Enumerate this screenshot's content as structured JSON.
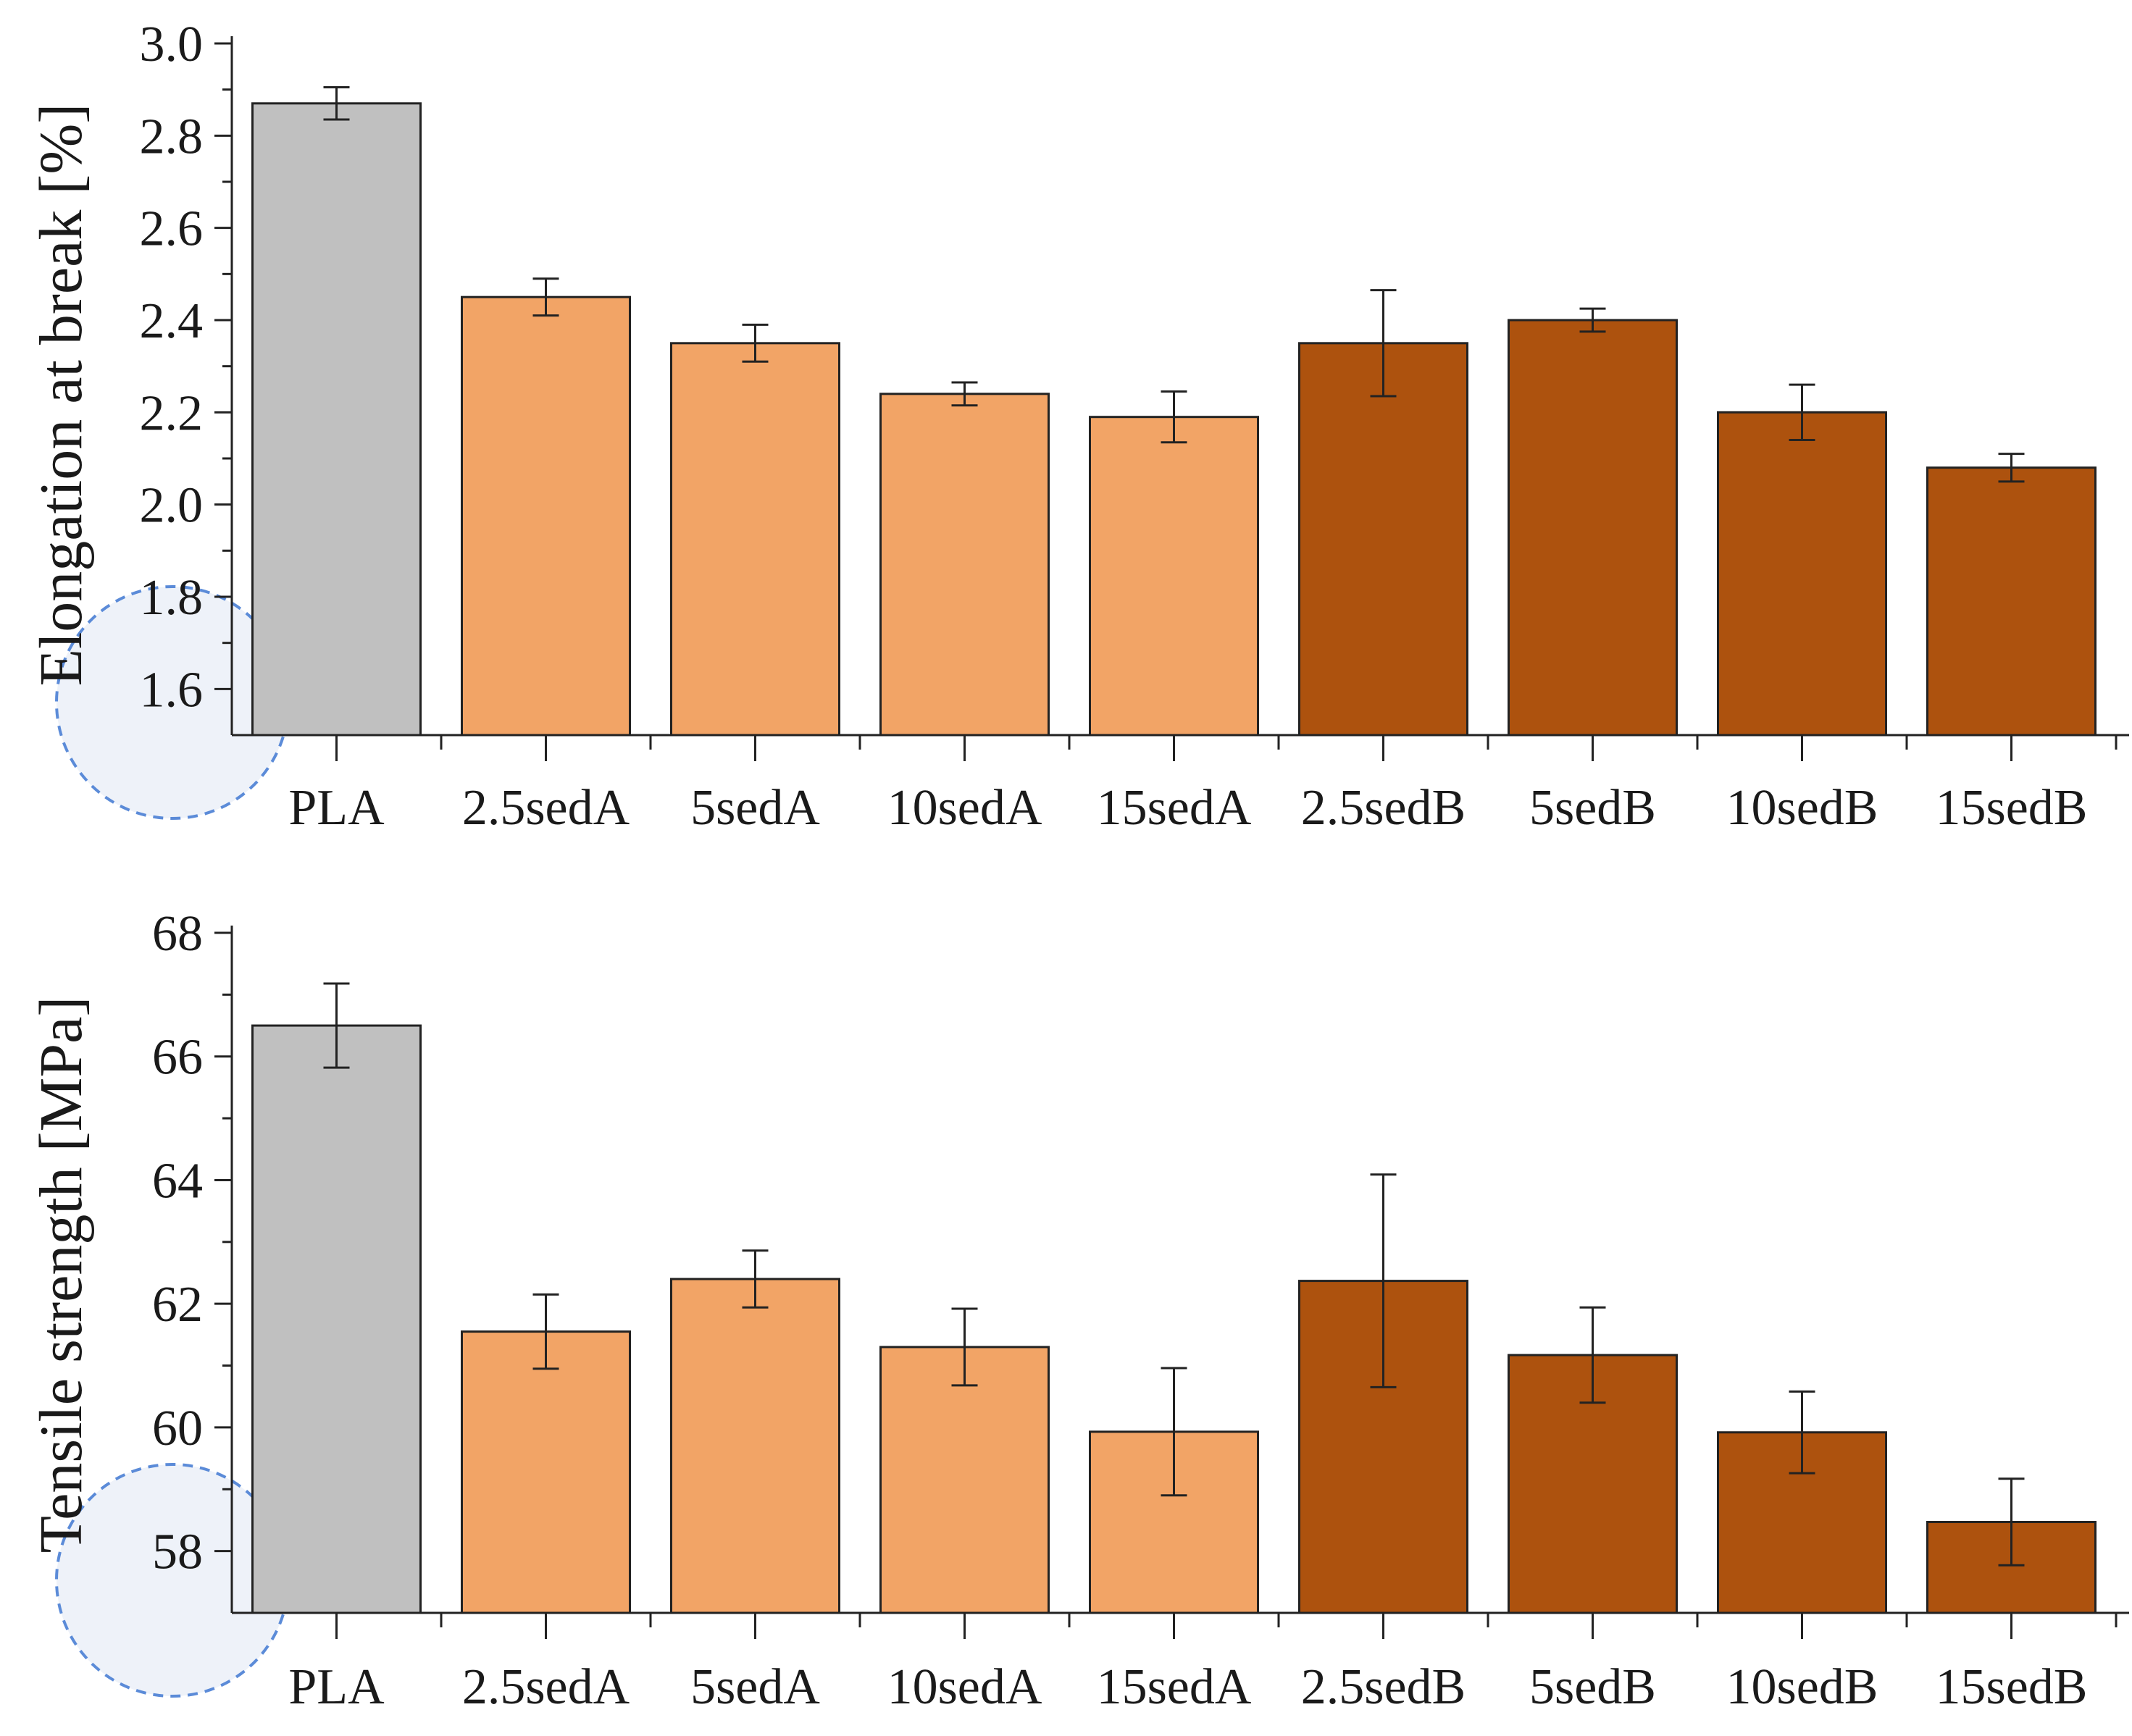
{
  "colors": {
    "pla": "#c0c0c0",
    "sedA": "#f2a466",
    "sedB": "#ad520e",
    "highlight_fill": "#eef2f9",
    "highlight_stroke": "#5b8bd8"
  },
  "chart_data": [
    {
      "type": "bar",
      "title": "",
      "xlabel": "",
      "ylabel": "Elongation at break [%]",
      "ylim": [
        1.5,
        3.0
      ],
      "yticks": [
        1.6,
        1.8,
        2.0,
        2.2,
        2.4,
        2.6,
        2.8,
        3.0
      ],
      "ytick_labels": [
        "1.6",
        "1.8",
        "2.0",
        "2.2",
        "2.4",
        "2.6",
        "2.8",
        "3.0"
      ],
      "grid": false,
      "categories": [
        "PLA",
        "2.5sedA",
        "5sedA",
        "10sedA",
        "15sedA",
        "2.5sedB",
        "5sedB",
        "10sedB",
        "15sedB"
      ],
      "groups": [
        "pla",
        "sedA",
        "sedA",
        "sedA",
        "sedA",
        "sedB",
        "sedB",
        "sedB",
        "sedB"
      ],
      "values": [
        2.87,
        2.45,
        2.35,
        2.24,
        2.19,
        2.35,
        2.4,
        2.2,
        2.08
      ],
      "errors": [
        0.035,
        0.04,
        0.04,
        0.025,
        0.055,
        0.115,
        0.025,
        0.06,
        0.03
      ]
    },
    {
      "type": "bar",
      "title": "",
      "xlabel": "",
      "ylabel": "Tensile strength [MPa]",
      "ylim": [
        57,
        68
      ],
      "yticks": [
        58,
        60,
        62,
        64,
        66,
        68
      ],
      "ytick_labels": [
        "58",
        "60",
        "62",
        "64",
        "66",
        "68"
      ],
      "grid": false,
      "categories": [
        "PLA",
        "2.5sedA",
        "5sedA",
        "10sedA",
        "15sedA",
        "2.5sedB",
        "5sedB",
        "10sedB",
        "15sedB"
      ],
      "groups": [
        "pla",
        "sedA",
        "sedA",
        "sedA",
        "sedA",
        "sedB",
        "sedB",
        "sedB",
        "sedB"
      ],
      "values": [
        66.5,
        61.55,
        62.4,
        61.3,
        59.93,
        62.37,
        61.17,
        59.92,
        58.47
      ],
      "errors": [
        0.68,
        0.6,
        0.46,
        0.62,
        1.03,
        1.72,
        0.77,
        0.66,
        0.7
      ]
    }
  ]
}
